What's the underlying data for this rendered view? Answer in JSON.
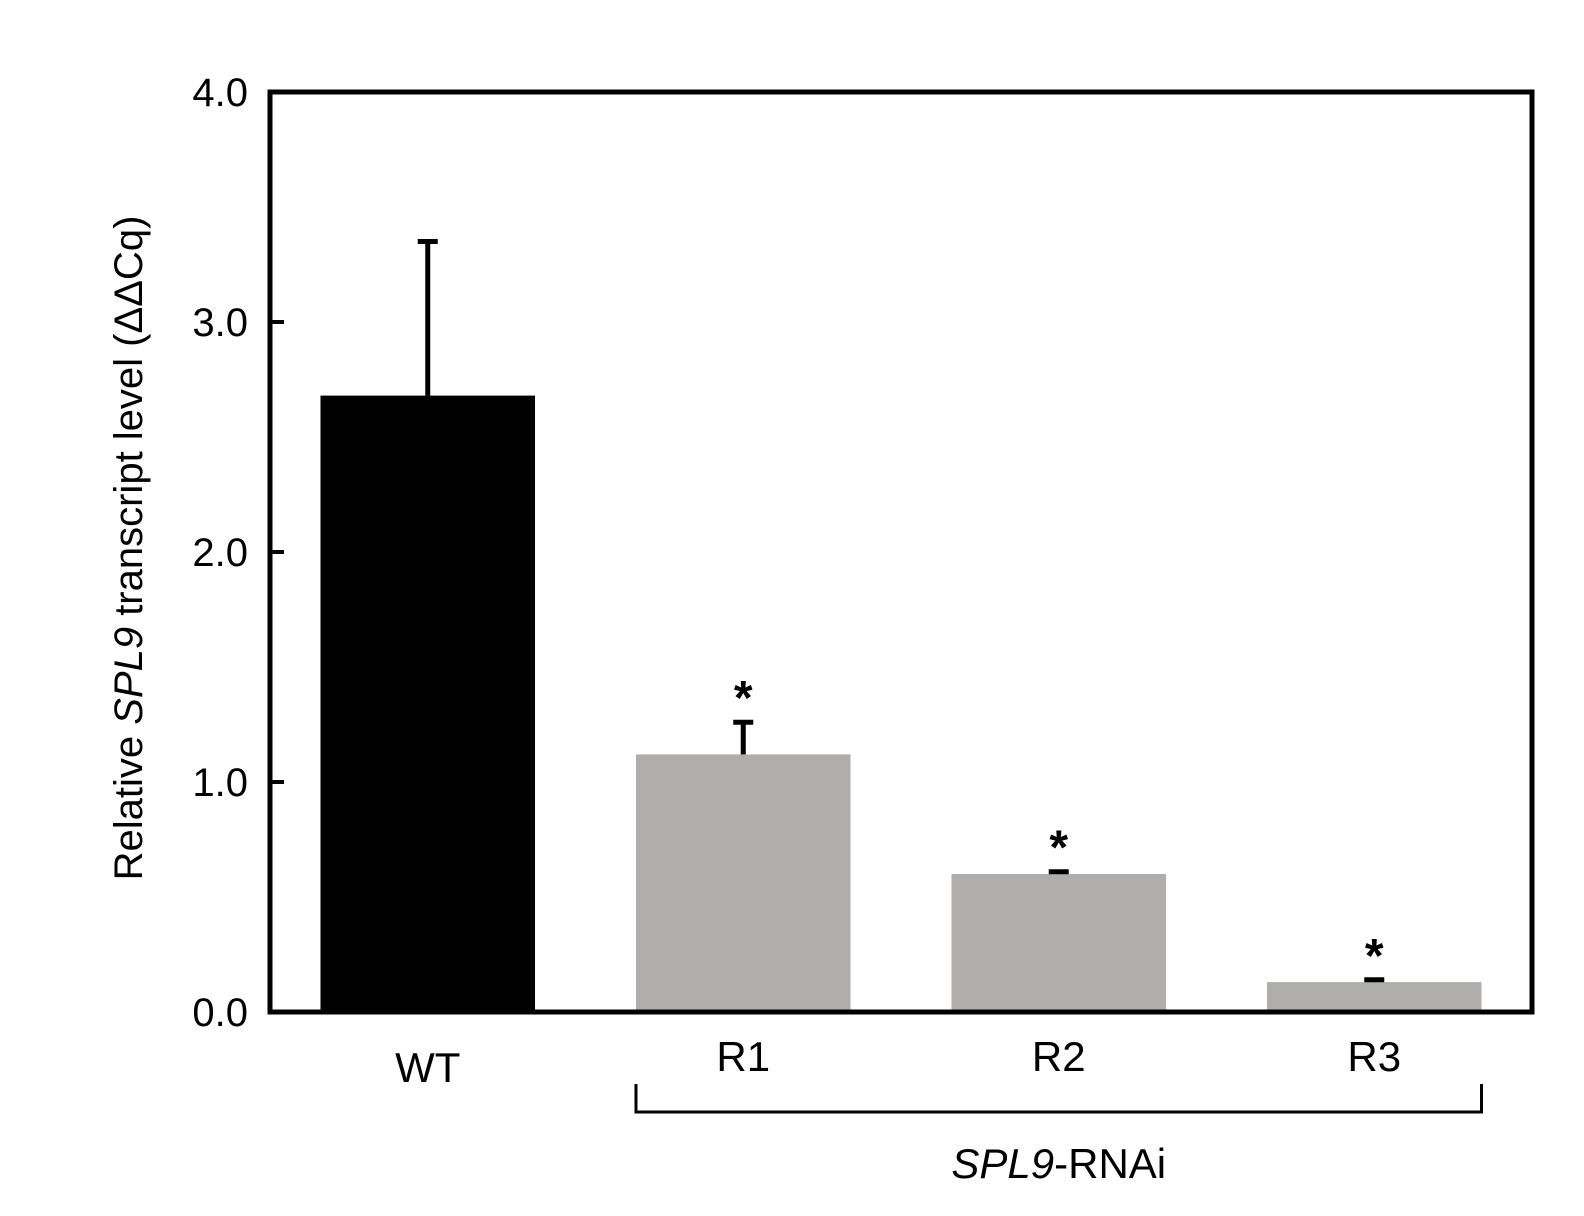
{
  "chart_data": {
    "type": "bar",
    "categories": [
      "WT",
      "R1",
      "R2",
      "R3"
    ],
    "values": [
      2.68,
      1.12,
      0.6,
      0.13
    ],
    "errors": [
      0.67,
      0.14,
      0.01,
      0.01
    ],
    "significance": [
      "",
      "*",
      "*",
      "*"
    ],
    "colors": [
      "#000000",
      "#b0adad",
      "#b0adad",
      "#b0adad"
    ],
    "ylim": [
      0,
      4
    ],
    "yticks": [
      0,
      1,
      2,
      3,
      4
    ],
    "ytick_labels": [
      "0.0",
      "1.0",
      "2.0",
      "3.0",
      "4.0"
    ],
    "ylabel": {
      "prefix": "Relative ",
      "gene": "SPL9",
      "suffix": " transcript level (ΔΔCq)"
    },
    "group": {
      "categories": [
        "R1",
        "R2",
        "R3"
      ],
      "gene": "SPL9",
      "suffix": "-RNAi"
    },
    "title": "",
    "xlabel": "",
    "grid": false,
    "legend": "none"
  }
}
